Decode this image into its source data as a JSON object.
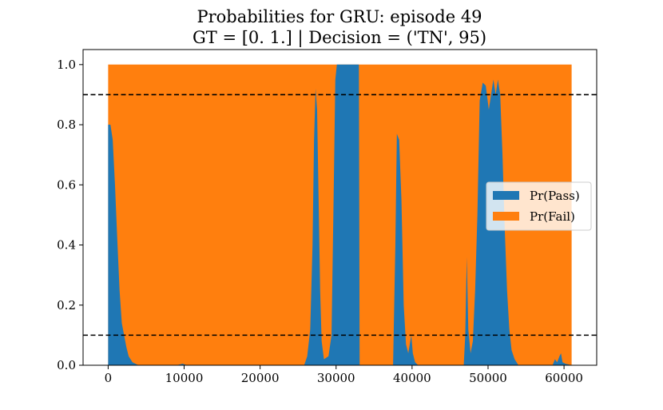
{
  "chart_data": {
    "type": "area",
    "stacked": true,
    "title_line1": "Probabilities for GRU: episode 49",
    "title_line2": "GT = [0. 1.] | Decision = ('TN', 95)",
    "xlabel": "",
    "ylabel": "",
    "xlim": [
      -3300,
      64300
    ],
    "ylim": [
      0,
      1.05
    ],
    "xticks": [
      0,
      10000,
      20000,
      30000,
      40000,
      50000,
      60000
    ],
    "yticks": [
      0.0,
      0.2,
      0.4,
      0.6,
      0.8,
      1.0
    ],
    "xtick_labels": [
      "0",
      "10000",
      "20000",
      "30000",
      "40000",
      "50000",
      "60000"
    ],
    "ytick_labels": [
      "0.0",
      "0.2",
      "0.4",
      "0.6",
      "0.8",
      "1.0"
    ],
    "thresholds": [
      0.9,
      0.1
    ],
    "grid": false,
    "legend_position": "center-right",
    "series": [
      {
        "name": "Pr(Pass)",
        "color": "#1f77b4",
        "points": [
          [
            0,
            0.8
          ],
          [
            300,
            0.8
          ],
          [
            600,
            0.75
          ],
          [
            900,
            0.6
          ],
          [
            1200,
            0.42
          ],
          [
            1500,
            0.25
          ],
          [
            1800,
            0.14
          ],
          [
            2100,
            0.1
          ],
          [
            2400,
            0.06
          ],
          [
            2700,
            0.03
          ],
          [
            3200,
            0.01
          ],
          [
            4000,
            0.0
          ],
          [
            9000,
            0.0
          ],
          [
            9800,
            0.005
          ],
          [
            10400,
            0.0
          ],
          [
            25800,
            0.0
          ],
          [
            26200,
            0.03
          ],
          [
            26600,
            0.12
          ],
          [
            26900,
            0.4
          ],
          [
            27100,
            0.75
          ],
          [
            27300,
            0.92
          ],
          [
            27500,
            0.85
          ],
          [
            27700,
            0.55
          ],
          [
            27900,
            0.25
          ],
          [
            28100,
            0.08
          ],
          [
            28400,
            0.02
          ],
          [
            29000,
            0.03
          ],
          [
            29400,
            0.1
          ],
          [
            29700,
            0.6
          ],
          [
            29900,
            0.95
          ],
          [
            30100,
            1.0
          ],
          [
            33000,
            1.0
          ],
          [
            33100,
            0.0
          ],
          [
            37500,
            0.0
          ],
          [
            37800,
            0.4
          ],
          [
            38000,
            0.77
          ],
          [
            38300,
            0.75
          ],
          [
            38600,
            0.55
          ],
          [
            38900,
            0.2
          ],
          [
            39200,
            0.07
          ],
          [
            39500,
            0.04
          ],
          [
            39700,
            0.07
          ],
          [
            39900,
            0.1
          ],
          [
            40100,
            0.04
          ],
          [
            40400,
            0.01
          ],
          [
            40800,
            0.0
          ],
          [
            46800,
            0.0
          ],
          [
            47000,
            0.1
          ],
          [
            47200,
            0.36
          ],
          [
            47400,
            0.12
          ],
          [
            47700,
            0.04
          ],
          [
            48000,
            0.08
          ],
          [
            48300,
            0.25
          ],
          [
            48600,
            0.5
          ],
          [
            48900,
            0.88
          ],
          [
            49300,
            0.94
          ],
          [
            49700,
            0.93
          ],
          [
            50100,
            0.85
          ],
          [
            50400,
            0.9
          ],
          [
            50700,
            0.95
          ],
          [
            51000,
            0.9
          ],
          [
            51300,
            0.95
          ],
          [
            51600,
            0.9
          ],
          [
            51900,
            0.7
          ],
          [
            52200,
            0.45
          ],
          [
            52500,
            0.25
          ],
          [
            52800,
            0.12
          ],
          [
            53100,
            0.05
          ],
          [
            53500,
            0.02
          ],
          [
            54000,
            0.0
          ],
          [
            58500,
            0.0
          ],
          [
            58800,
            0.02
          ],
          [
            59100,
            0.01
          ],
          [
            59400,
            0.03
          ],
          [
            59600,
            0.04
          ],
          [
            59800,
            0.01
          ],
          [
            60200,
            0.005
          ],
          [
            61000,
            0.0
          ]
        ]
      },
      {
        "name": "Pr(Fail)",
        "color": "#ff7f0e",
        "complement_of": "Pr(Pass)",
        "total": 1.0
      }
    ]
  }
}
